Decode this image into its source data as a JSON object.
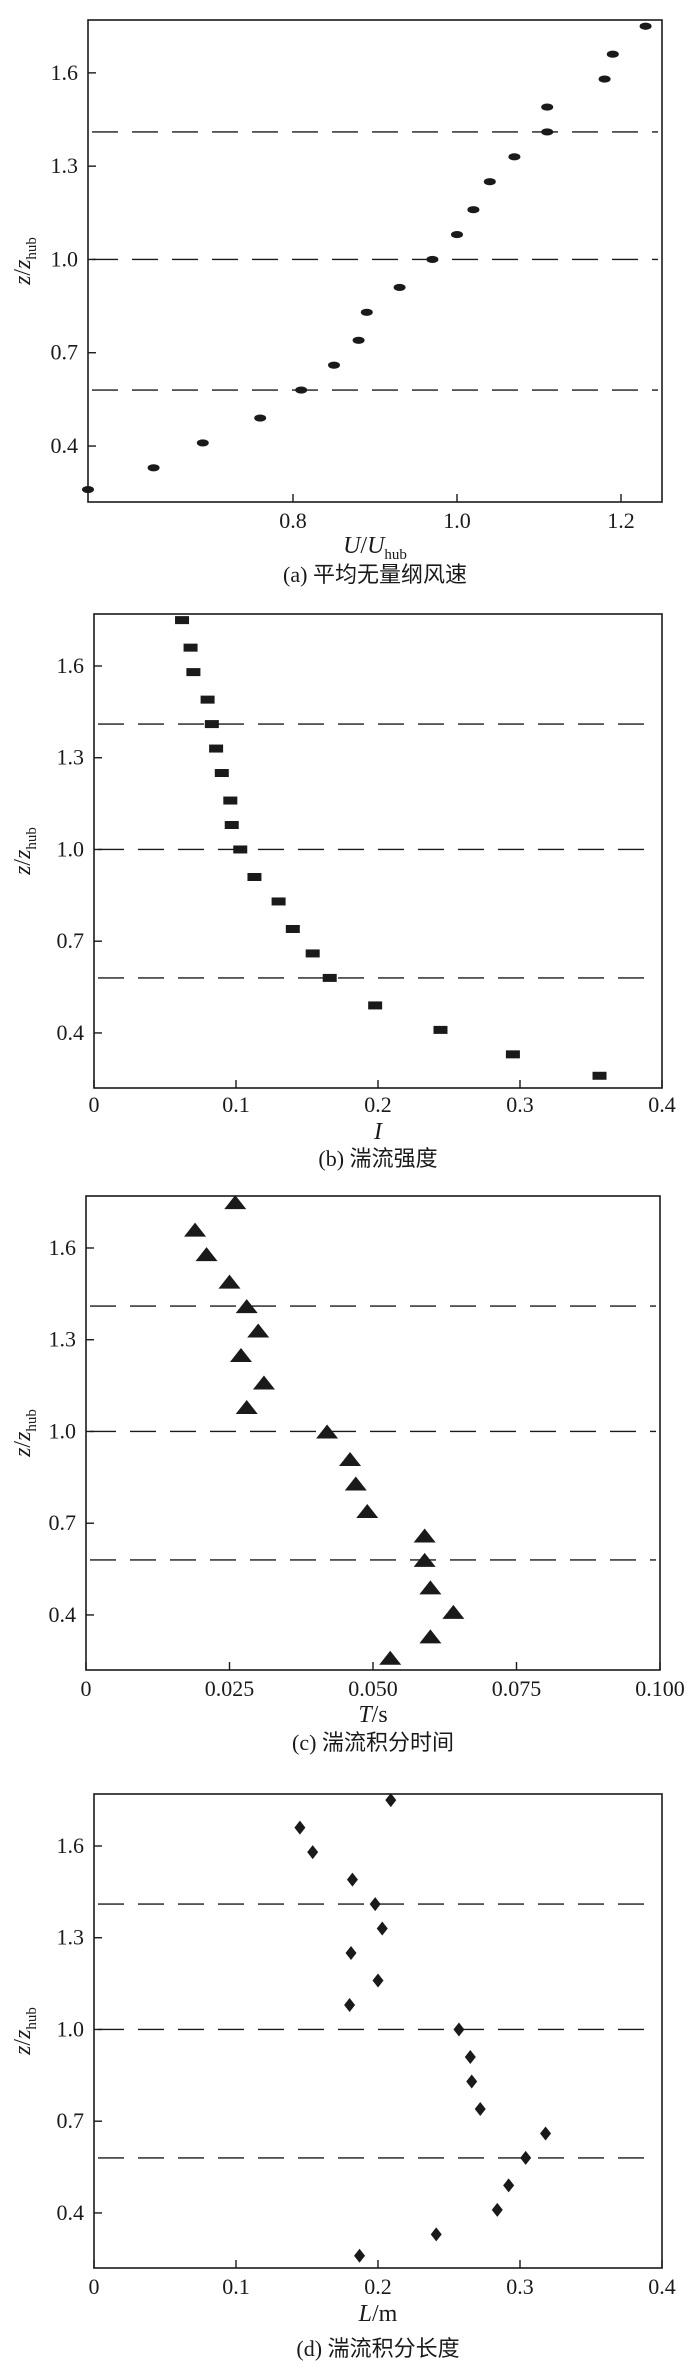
{
  "chart_data": [
    {
      "type": "scatter",
      "caption": "(a) 平均无量纲风速",
      "xlabel": "U/U_hub",
      "ylabel": "z/z_hub",
      "marker": "ellipse",
      "xlim": [
        0.55,
        1.25
      ],
      "ylim": [
        0.22,
        1.77
      ],
      "xticks": [
        0.8,
        1.0,
        1.2
      ],
      "xtick_labels": [
        "0.8",
        "1.0",
        "1.2"
      ],
      "yticks": [
        0.4,
        0.7,
        1.0,
        1.3,
        1.6
      ],
      "ytick_labels": [
        "0.4",
        "0.7",
        "1.0",
        "1.3",
        "1.6"
      ],
      "hlines": [
        1.41,
        1.0,
        0.58
      ],
      "points": [
        {
          "x": 0.55,
          "y": 0.26
        },
        {
          "x": 0.63,
          "y": 0.33
        },
        {
          "x": 0.69,
          "y": 0.41
        },
        {
          "x": 0.76,
          "y": 0.49
        },
        {
          "x": 0.81,
          "y": 0.58
        },
        {
          "x": 0.85,
          "y": 0.66
        },
        {
          "x": 0.88,
          "y": 0.74
        },
        {
          "x": 0.89,
          "y": 0.83
        },
        {
          "x": 0.93,
          "y": 0.91
        },
        {
          "x": 0.97,
          "y": 1.0
        },
        {
          "x": 1.0,
          "y": 1.08
        },
        {
          "x": 1.02,
          "y": 1.16
        },
        {
          "x": 1.04,
          "y": 1.25
        },
        {
          "x": 1.07,
          "y": 1.33
        },
        {
          "x": 1.11,
          "y": 1.41
        },
        {
          "x": 1.11,
          "y": 1.49
        },
        {
          "x": 1.18,
          "y": 1.58
        },
        {
          "x": 1.19,
          "y": 1.66
        },
        {
          "x": 1.23,
          "y": 1.75
        }
      ]
    },
    {
      "type": "scatter",
      "caption": "(b) 湍流强度",
      "xlabel": "I",
      "ylabel": "z/z_hub",
      "marker": "rect",
      "xlim": [
        0,
        0.4
      ],
      "ylim": [
        0.22,
        1.77
      ],
      "xticks": [
        0,
        0.1,
        0.2,
        0.3,
        0.4
      ],
      "xtick_labels": [
        "0",
        "0.1",
        "0.2",
        "0.3",
        "0.4"
      ],
      "yticks": [
        0.4,
        0.7,
        1.0,
        1.3,
        1.6
      ],
      "ytick_labels": [
        "0.4",
        "0.7",
        "1.0",
        "1.3",
        "1.6"
      ],
      "hlines": [
        1.41,
        1.0,
        0.58
      ],
      "points": [
        {
          "x": 0.356,
          "y": 0.26
        },
        {
          "x": 0.295,
          "y": 0.33
        },
        {
          "x": 0.244,
          "y": 0.41
        },
        {
          "x": 0.198,
          "y": 0.49
        },
        {
          "x": 0.166,
          "y": 0.58
        },
        {
          "x": 0.154,
          "y": 0.66
        },
        {
          "x": 0.14,
          "y": 0.74
        },
        {
          "x": 0.13,
          "y": 0.83
        },
        {
          "x": 0.113,
          "y": 0.91
        },
        {
          "x": 0.103,
          "y": 1.0
        },
        {
          "x": 0.097,
          "y": 1.08
        },
        {
          "x": 0.096,
          "y": 1.16
        },
        {
          "x": 0.09,
          "y": 1.25
        },
        {
          "x": 0.086,
          "y": 1.33
        },
        {
          "x": 0.083,
          "y": 1.41
        },
        {
          "x": 0.08,
          "y": 1.49
        },
        {
          "x": 0.07,
          "y": 1.58
        },
        {
          "x": 0.068,
          "y": 1.66
        },
        {
          "x": 0.062,
          "y": 1.75
        }
      ]
    },
    {
      "type": "scatter",
      "caption": "(c) 湍流积分时间",
      "xlabel": "T/s",
      "ylabel": "z/z_hub",
      "marker": "triangle",
      "xlim": [
        0,
        0.1
      ],
      "ylim": [
        0.22,
        1.77
      ],
      "xticks": [
        0,
        0.025,
        0.05,
        0.075,
        0.1
      ],
      "xtick_labels": [
        "0",
        "0.025",
        "0.050",
        "0.075",
        "0.100"
      ],
      "yticks": [
        0.4,
        0.7,
        1.0,
        1.3,
        1.6
      ],
      "ytick_labels": [
        "0.4",
        "0.7",
        "1.0",
        "1.3",
        "1.6"
      ],
      "hlines": [
        1.41,
        1.0,
        0.58
      ],
      "points": [
        {
          "x": 0.053,
          "y": 0.26
        },
        {
          "x": 0.06,
          "y": 0.33
        },
        {
          "x": 0.064,
          "y": 0.41
        },
        {
          "x": 0.06,
          "y": 0.49
        },
        {
          "x": 0.059,
          "y": 0.58
        },
        {
          "x": 0.059,
          "y": 0.66
        },
        {
          "x": 0.049,
          "y": 0.74
        },
        {
          "x": 0.047,
          "y": 0.83
        },
        {
          "x": 0.046,
          "y": 0.91
        },
        {
          "x": 0.042,
          "y": 1.0
        },
        {
          "x": 0.028,
          "y": 1.08
        },
        {
          "x": 0.031,
          "y": 1.16
        },
        {
          "x": 0.027,
          "y": 1.25
        },
        {
          "x": 0.03,
          "y": 1.33
        },
        {
          "x": 0.028,
          "y": 1.41
        },
        {
          "x": 0.025,
          "y": 1.49
        },
        {
          "x": 0.021,
          "y": 1.58
        },
        {
          "x": 0.019,
          "y": 1.66
        },
        {
          "x": 0.026,
          "y": 1.75
        }
      ]
    },
    {
      "type": "scatter",
      "caption": "(d) 湍流积分长度",
      "xlabel": "L/m",
      "ylabel": "z/z_hub",
      "marker": "diamond",
      "xlim": [
        0,
        0.4
      ],
      "ylim": [
        0.22,
        1.77
      ],
      "xticks": [
        0,
        0.1,
        0.2,
        0.3,
        0.4
      ],
      "xtick_labels": [
        "0",
        "0.1",
        "0.2",
        "0.3",
        "0.4"
      ],
      "yticks": [
        0.4,
        0.7,
        1.0,
        1.3,
        1.6
      ],
      "ytick_labels": [
        "0.4",
        "0.7",
        "1.0",
        "1.3",
        "1.6"
      ],
      "hlines": [
        1.41,
        1.0,
        0.58
      ],
      "points": [
        {
          "x": 0.187,
          "y": 0.26
        },
        {
          "x": 0.241,
          "y": 0.33
        },
        {
          "x": 0.284,
          "y": 0.41
        },
        {
          "x": 0.292,
          "y": 0.49
        },
        {
          "x": 0.304,
          "y": 0.58
        },
        {
          "x": 0.318,
          "y": 0.66
        },
        {
          "x": 0.272,
          "y": 0.74
        },
        {
          "x": 0.266,
          "y": 0.83
        },
        {
          "x": 0.265,
          "y": 0.91
        },
        {
          "x": 0.257,
          "y": 1.0
        },
        {
          "x": 0.18,
          "y": 1.08
        },
        {
          "x": 0.2,
          "y": 1.16
        },
        {
          "x": 0.181,
          "y": 1.25
        },
        {
          "x": 0.203,
          "y": 1.33
        },
        {
          "x": 0.198,
          "y": 1.41
        },
        {
          "x": 0.182,
          "y": 1.49
        },
        {
          "x": 0.154,
          "y": 1.58
        },
        {
          "x": 0.145,
          "y": 1.66
        },
        {
          "x": 0.209,
          "y": 1.75
        }
      ]
    }
  ],
  "colors": {
    "marker": "#1a1a1a",
    "axis": "#1a1a1a",
    "background": "#ffffff"
  }
}
